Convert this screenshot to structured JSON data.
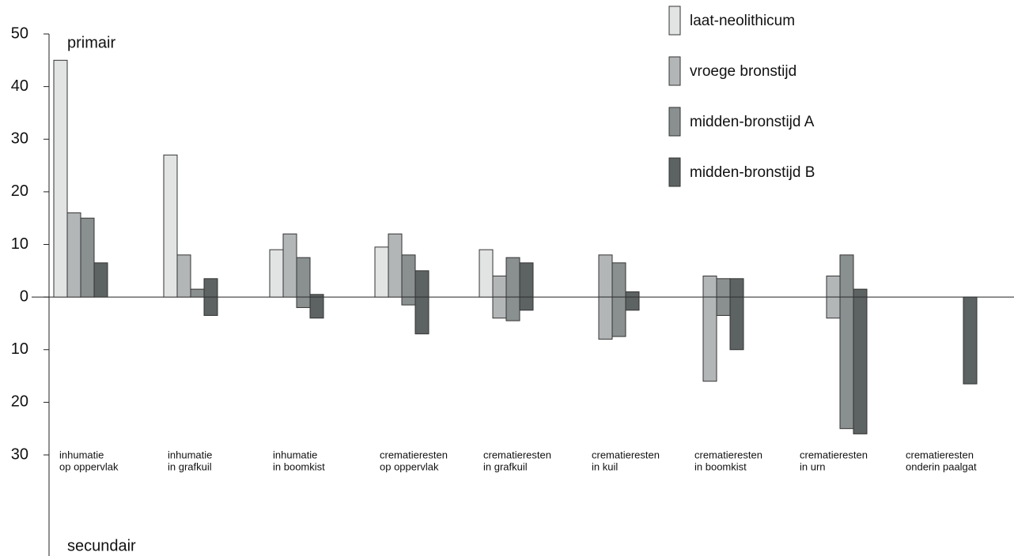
{
  "chart_data": {
    "type": "bar",
    "annotations": [
      "primair",
      "secundair"
    ],
    "categories": [
      [
        "inhumatie",
        "op oppervlak"
      ],
      [
        "inhumatie",
        "in grafkuil"
      ],
      [
        "inhumatie",
        "in boomkist"
      ],
      [
        "crematieresten",
        "op oppervlak"
      ],
      [
        "crematieresten",
        "in grafkuil"
      ],
      [
        "crematieresten",
        "in kuil"
      ],
      [
        "crematieresten",
        "in boomkist"
      ],
      [
        "crematieresten",
        "in urn"
      ],
      [
        "crematieresten",
        "onderin paalgat"
      ]
    ],
    "series": [
      {
        "name": "laat-neolithicum",
        "color": "#e2e3e3",
        "values": [
          45,
          27,
          9,
          9.5,
          9,
          null,
          null,
          null,
          null
        ],
        "secondary": [
          null,
          null,
          null,
          null,
          null,
          null,
          null,
          null,
          null
        ]
      },
      {
        "name": "vroege bronstijd",
        "color": "#b3b6b7",
        "values": [
          16,
          8,
          12,
          12,
          4,
          8,
          4,
          4,
          null
        ],
        "secondary": [
          null,
          null,
          null,
          null,
          -4,
          -8,
          -16,
          -4,
          null
        ]
      },
      {
        "name": "midden-bronstijd A",
        "color": "#8a8f8f",
        "values": [
          15,
          1.5,
          7.5,
          8,
          7.5,
          6.5,
          3.5,
          8,
          null
        ],
        "secondary": [
          null,
          null,
          -2,
          -1.5,
          -4.5,
          -7.5,
          -3.5,
          -25,
          null
        ]
      },
      {
        "name": "midden-bronstijd B",
        "color": "#5d6262",
        "values": [
          6.5,
          3.5,
          0.5,
          5,
          6.5,
          1,
          3.5,
          1.5,
          null
        ],
        "secondary": [
          null,
          -3.5,
          -4,
          -7,
          -2.5,
          -2.5,
          -10,
          -26,
          -16.5
        ]
      }
    ],
    "ylim": [
      -30,
      50
    ],
    "yticks": [
      50,
      40,
      30,
      20,
      10,
      0,
      {
        "value": -10,
        "label": "10"
      },
      {
        "value": -20,
        "label": "20"
      },
      {
        "value": -30,
        "label": "30"
      }
    ]
  }
}
